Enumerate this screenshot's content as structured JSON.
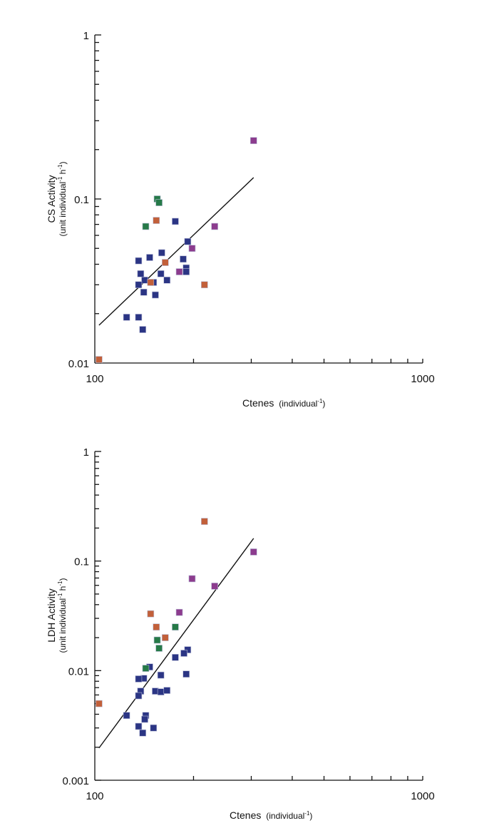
{
  "colors": {
    "blue": "#2b3584",
    "orange": "#c2603a",
    "green": "#267a48",
    "purple": "#8c3c8e",
    "line": "#111111"
  },
  "chart_data": [
    {
      "type": "scatter",
      "xscale": "log",
      "yscale": "log",
      "xlim": [
        100,
        1000
      ],
      "ylim": [
        0.01,
        1
      ],
      "x_tick_labels": [
        "100",
        "1000"
      ],
      "y_tick_labels": [
        "0.01",
        "0.1",
        "1"
      ],
      "xlabel": {
        "main": "Ctenes",
        "unit_pre": "(individual",
        "unit_sup": "-1",
        "unit_post": ")"
      },
      "ylabel": {
        "main": "CS Activity",
        "unit_pre": "(unit individual",
        "unit_sup1": "-1",
        "unit_mid": " h",
        "unit_sup2": "-1",
        "unit_post": ")"
      },
      "fit_line": {
        "x": [
          103,
          305
        ],
        "y": [
          0.017,
          0.135
        ]
      },
      "series": [
        {
          "name": "blue",
          "color": "blue",
          "points": [
            [
              176,
              0.073
            ],
            [
              192,
              0.055
            ],
            [
              160,
              0.047
            ],
            [
              147,
              0.044
            ],
            [
              136,
              0.042
            ],
            [
              186,
              0.043
            ],
            [
              190,
              0.038
            ],
            [
              190,
              0.036
            ],
            [
              159,
              0.035
            ],
            [
              138,
              0.035
            ],
            [
              142,
              0.032
            ],
            [
              151,
              0.031
            ],
            [
              166,
              0.032
            ],
            [
              136,
              0.03
            ],
            [
              141,
              0.027
            ],
            [
              153,
              0.026
            ],
            [
              125,
              0.019
            ],
            [
              136,
              0.019
            ],
            [
              140,
              0.016
            ]
          ]
        },
        {
          "name": "orange",
          "color": "orange",
          "points": [
            [
              154,
              0.074
            ],
            [
              164,
              0.041
            ],
            [
              148,
              0.031
            ],
            [
              216,
              0.03
            ],
            [
              103,
              0.0105
            ]
          ]
        },
        {
          "name": "green",
          "color": "green",
          "points": [
            [
              155,
              0.1
            ],
            [
              157,
              0.095
            ],
            [
              143,
              0.068
            ]
          ]
        },
        {
          "name": "purple",
          "color": "purple",
          "points": [
            [
              305,
              0.227
            ],
            [
              232,
              0.068
            ],
            [
              198,
              0.05
            ],
            [
              181,
              0.036
            ]
          ]
        }
      ]
    },
    {
      "type": "scatter",
      "xscale": "log",
      "yscale": "log",
      "xlim": [
        100,
        1000
      ],
      "ylim": [
        0.001,
        1
      ],
      "x_tick_labels": [
        "100",
        "1000"
      ],
      "y_tick_labels": [
        "0.001",
        "0.01",
        "0.1",
        "1"
      ],
      "xlabel": {
        "main": "Ctenes",
        "unit_pre": "(individual",
        "unit_sup": "-1",
        "unit_post": ")"
      },
      "ylabel": {
        "main": "LDH Activity",
        "unit_pre": "(unit individual",
        "unit_sup1": "-1",
        "unit_mid": " h",
        "unit_sup2": "-1",
        "unit_post": ")"
      },
      "fit_line": {
        "x": [
          103,
          305
        ],
        "y": [
          0.00197,
          0.161
        ]
      },
      "series": [
        {
          "name": "blue",
          "color": "blue",
          "points": [
            [
              192,
              0.0155
            ],
            [
              187,
              0.0144
            ],
            [
              176,
              0.0132
            ],
            [
              147,
              0.0108
            ],
            [
              159,
              0.0091
            ],
            [
              190,
              0.0093
            ],
            [
              141,
              0.0085
            ],
            [
              136,
              0.0084
            ],
            [
              138,
              0.0065
            ],
            [
              136,
              0.0059
            ],
            [
              153,
              0.0065
            ],
            [
              159,
              0.0064
            ],
            [
              166,
              0.0066
            ],
            [
              125,
              0.0039
            ],
            [
              143,
              0.0039
            ],
            [
              142,
              0.0036
            ],
            [
              136,
              0.0031
            ],
            [
              151,
              0.003
            ],
            [
              140,
              0.0027
            ]
          ]
        },
        {
          "name": "orange",
          "color": "orange",
          "points": [
            [
              216,
              0.23
            ],
            [
              148,
              0.033
            ],
            [
              154,
              0.025
            ],
            [
              164,
              0.02
            ],
            [
              103,
              0.005
            ]
          ]
        },
        {
          "name": "green",
          "color": "green",
          "points": [
            [
              176,
              0.025
            ],
            [
              155,
              0.019
            ],
            [
              157,
              0.016
            ],
            [
              143,
              0.0105
            ]
          ]
        },
        {
          "name": "purple",
          "color": "purple",
          "points": [
            [
              305,
              0.121
            ],
            [
              198,
              0.069
            ],
            [
              232,
              0.059
            ],
            [
              181,
              0.034
            ]
          ]
        }
      ]
    }
  ]
}
